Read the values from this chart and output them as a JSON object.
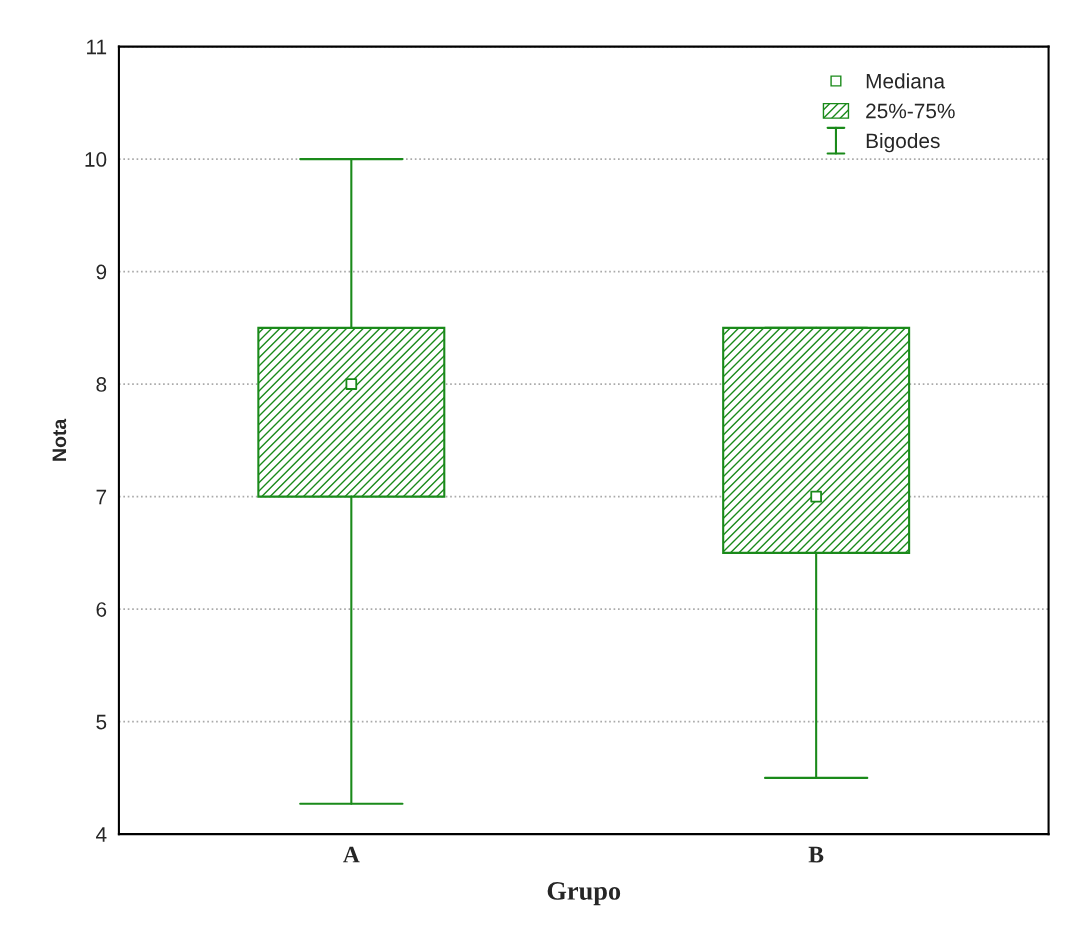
{
  "chart_data": {
    "type": "box",
    "xlabel": "Grupo",
    "ylabel": "Nota",
    "categories": [
      "A",
      "B"
    ],
    "color": "#1a8a1a",
    "marker": "square",
    "boxes": [
      {
        "low": 4.27,
        "q1": 7,
        "median": 8,
        "q3": 8.5,
        "high": 10
      },
      {
        "low": 4.5,
        "q1": 6.5,
        "median": 7,
        "q3": 8.5,
        "high": 8.5
      }
    ],
    "annotations": [
      "Mediana",
      "25%-75%",
      "Bigodes"
    ],
    "ylim": [
      4,
      11
    ],
    "yticks": [
      4,
      5,
      6,
      7,
      8,
      9,
      10,
      11
    ],
    "grid": "y"
  }
}
